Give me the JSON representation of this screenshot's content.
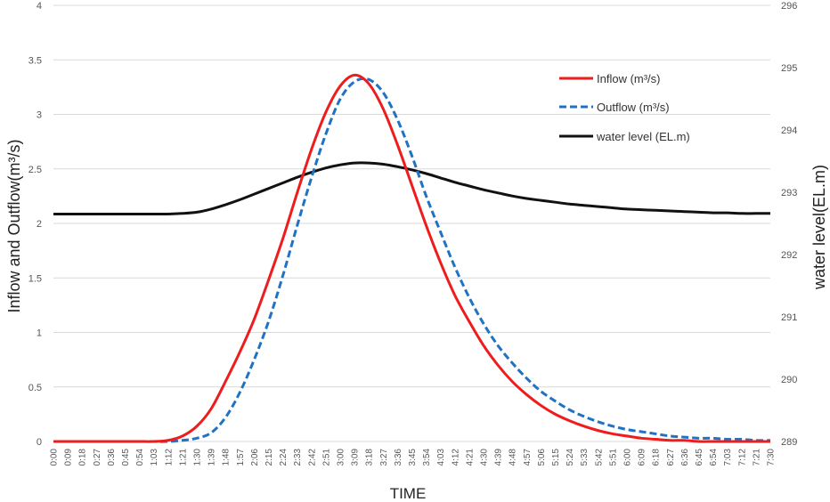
{
  "chart_data": {
    "type": "line",
    "xlabel": "TIME",
    "ylabel_left": "Inflow and Outflow(m³/s)",
    "ylabel_right": "water level(EL.m)",
    "ylim_left": [
      0,
      4
    ],
    "yticks_left": [
      "0",
      "0.5",
      "1",
      "1.5",
      "2",
      "2.5",
      "3",
      "3.5",
      "4"
    ],
    "ylim_right": [
      289,
      296
    ],
    "yticks_right": [
      "289",
      "290",
      "291",
      "292",
      "293",
      "294",
      "295",
      "296"
    ],
    "x": [
      "0:00",
      "0:09",
      "0:18",
      "0:27",
      "0:36",
      "0:45",
      "0:54",
      "1:03",
      "1:12",
      "1:21",
      "1:30",
      "1:39",
      "1:48",
      "1:57",
      "2:06",
      "2:15",
      "2:24",
      "2:33",
      "2:42",
      "2:51",
      "3:00",
      "3:09",
      "3:18",
      "3:27",
      "3:36",
      "3:45",
      "3:54",
      "4:03",
      "4:12",
      "4:21",
      "4:30",
      "4:39",
      "4:48",
      "4:57",
      "5:06",
      "5:15",
      "5:24",
      "5:33",
      "5:42",
      "5:51",
      "6:00",
      "6:09",
      "6:18",
      "6:27",
      "6:36",
      "6:45",
      "6:54",
      "7:03",
      "7:12",
      "7:21",
      "7:30"
    ],
    "grid": "horizontal",
    "legend_position": "top-right",
    "series": [
      {
        "name": "Inflow (m³/s)",
        "axis": "left",
        "color": "#ee1c1c",
        "style": "solid",
        "values": [
          0,
          0,
          0,
          0,
          0,
          0,
          0,
          0,
          0.01,
          0.05,
          0.14,
          0.3,
          0.55,
          0.82,
          1.12,
          1.48,
          1.86,
          2.28,
          2.68,
          3.02,
          3.26,
          3.36,
          3.28,
          3.05,
          2.72,
          2.35,
          1.98,
          1.64,
          1.34,
          1.1,
          0.88,
          0.7,
          0.55,
          0.43,
          0.33,
          0.25,
          0.19,
          0.14,
          0.1,
          0.07,
          0.05,
          0.03,
          0.02,
          0.01,
          0.01,
          0,
          0,
          0,
          0,
          0,
          0
        ]
      },
      {
        "name": "Outflow (m³/s)",
        "axis": "left",
        "color": "#1f72c4",
        "style": "dashed",
        "values": [
          0,
          0,
          0,
          0,
          0,
          0,
          0,
          0,
          0,
          0.01,
          0.03,
          0.08,
          0.22,
          0.45,
          0.75,
          1.1,
          1.52,
          1.98,
          2.42,
          2.82,
          3.14,
          3.3,
          3.32,
          3.2,
          2.95,
          2.62,
          2.25,
          1.92,
          1.6,
          1.32,
          1.08,
          0.88,
          0.72,
          0.58,
          0.46,
          0.37,
          0.29,
          0.23,
          0.18,
          0.14,
          0.11,
          0.09,
          0.07,
          0.05,
          0.04,
          0.03,
          0.03,
          0.02,
          0.02,
          0.01,
          0.01
        ]
      },
      {
        "name": "water level (EL.m)",
        "axis": "right",
        "color": "#111111",
        "style": "solid",
        "values": [
          292.65,
          292.65,
          292.65,
          292.65,
          292.65,
          292.65,
          292.65,
          292.65,
          292.65,
          292.66,
          292.68,
          292.73,
          292.8,
          292.88,
          292.97,
          293.06,
          293.15,
          293.24,
          293.32,
          293.39,
          293.44,
          293.47,
          293.47,
          293.45,
          293.41,
          293.36,
          293.3,
          293.23,
          293.16,
          293.1,
          293.04,
          292.99,
          292.94,
          292.9,
          292.87,
          292.84,
          292.81,
          292.79,
          292.77,
          292.75,
          292.73,
          292.72,
          292.71,
          292.7,
          292.69,
          292.68,
          292.67,
          292.67,
          292.66,
          292.66,
          292.66
        ]
      }
    ]
  }
}
